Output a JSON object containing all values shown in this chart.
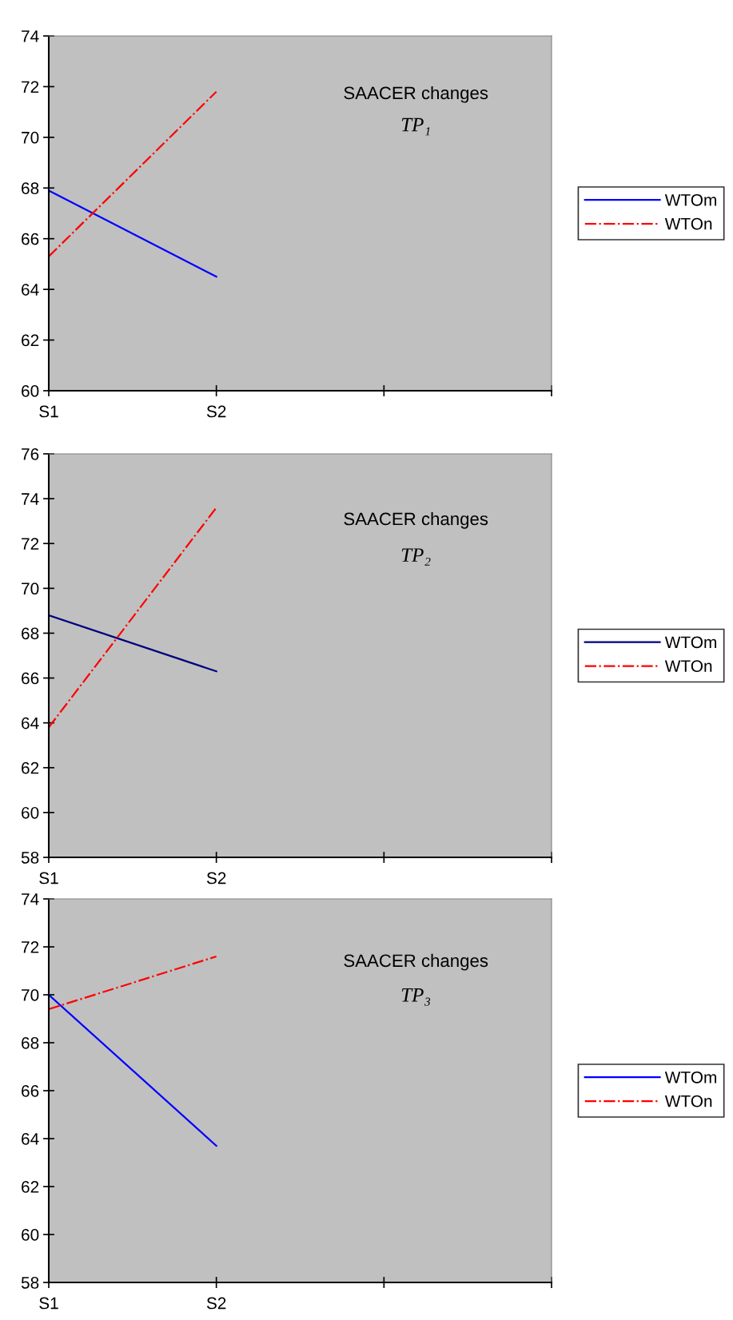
{
  "chart_data": [
    {
      "type": "line",
      "categories": [
        "S1",
        "S2",
        null,
        null
      ],
      "ylim": [
        60,
        74
      ],
      "yticks": [
        60,
        62,
        64,
        66,
        68,
        70,
        72,
        74
      ],
      "grid": false,
      "legend": "right",
      "annotations": [
        "SAACER changes",
        "TP₁"
      ],
      "series": [
        {
          "name": "WTOm",
          "color": "#0000ff",
          "line_style": "solid",
          "values": [
            67.9,
            64.5,
            null,
            null
          ]
        },
        {
          "name": "WTOn",
          "color": "#ff0000",
          "line_style": "dashdot",
          "values": [
            65.3,
            71.8,
            null,
            null
          ]
        }
      ]
    },
    {
      "type": "line",
      "categories": [
        "S1",
        "S2",
        null,
        null
      ],
      "ylim": [
        58,
        76
      ],
      "yticks": [
        58,
        60,
        62,
        64,
        66,
        68,
        70,
        72,
        74,
        76
      ],
      "grid": false,
      "legend": "right",
      "annotations": [
        "SAACER changes",
        "TP₂"
      ],
      "series": [
        {
          "name": "WTOm",
          "color": "#000080",
          "line_style": "solid",
          "values": [
            68.8,
            66.3,
            null,
            null
          ]
        },
        {
          "name": "WTOn",
          "color": "#ff0000",
          "line_style": "dashdot",
          "values": [
            63.8,
            73.6,
            null,
            null
          ]
        }
      ]
    },
    {
      "type": "line",
      "categories": [
        "S1",
        "S2",
        null,
        null
      ],
      "ylim": [
        58,
        74
      ],
      "yticks": [
        58,
        60,
        62,
        64,
        66,
        68,
        70,
        72,
        74
      ],
      "grid": false,
      "legend": "right",
      "annotations": [
        "SAACER changes",
        "TP₃"
      ],
      "series": [
        {
          "name": "WTOm",
          "color": "#0000ff",
          "line_style": "solid",
          "values": [
            70.0,
            63.7,
            null,
            null
          ]
        },
        {
          "name": "WTOn",
          "color": "#ff0000",
          "line_style": "dashdot",
          "values": [
            69.4,
            71.6,
            null,
            null
          ]
        }
      ]
    }
  ]
}
